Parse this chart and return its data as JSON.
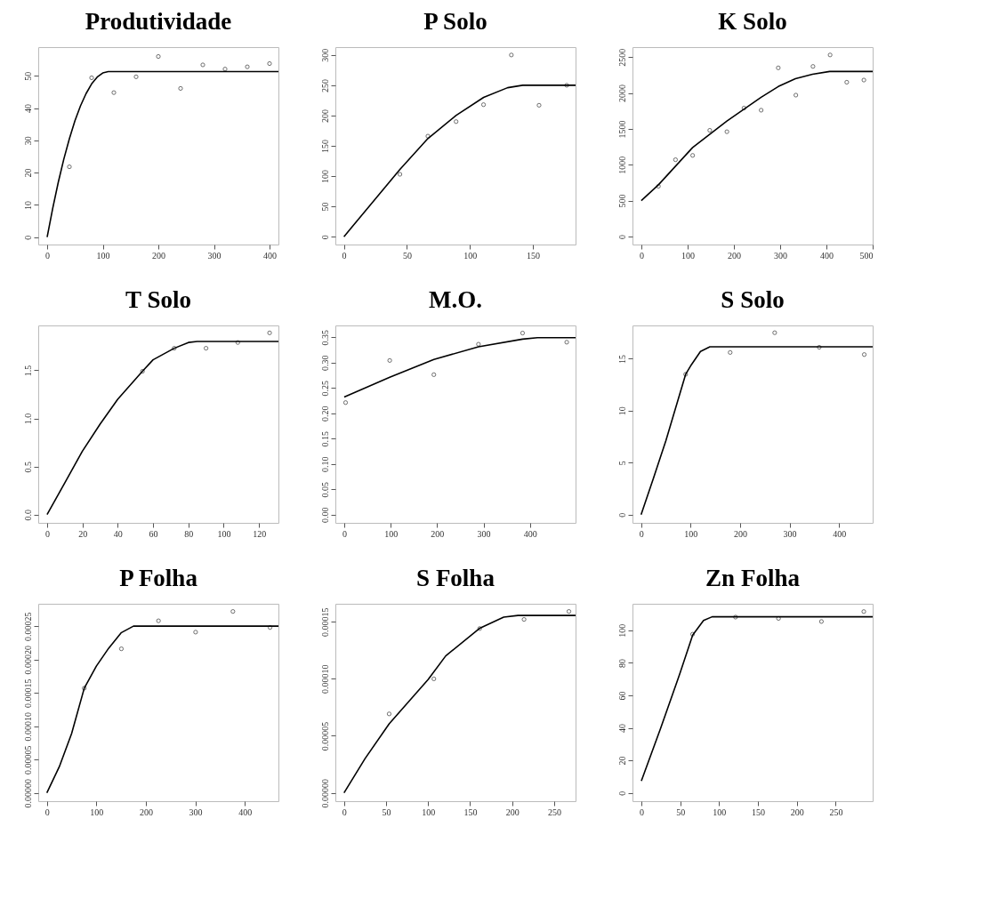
{
  "chart_data": [
    {
      "type": "scatter",
      "title": "Produtividade",
      "xlim": [
        -16,
        416
      ],
      "ylim": [
        -2.3,
        58.9
      ],
      "xticks": [
        0,
        100,
        200,
        300,
        400
      ],
      "yticks": [
        0,
        10,
        20,
        30,
        40,
        50
      ],
      "grid": false,
      "series": [
        {
          "marker": "circle",
          "color": "#000000",
          "x": [
            40,
            80,
            120,
            160,
            200,
            240,
            280,
            320,
            360,
            400
          ],
          "values": [
            21.8,
            49.4,
            44.8,
            49.7,
            56.0,
            46.1,
            53.4,
            52.1,
            52.8,
            53.8
          ]
        },
        {
          "type": "line",
          "line_style": "solid",
          "color": "#000000",
          "x": [
            0,
            10,
            20,
            30,
            40,
            50,
            60,
            70,
            80,
            90,
            100,
            110,
            416
          ],
          "values": [
            0,
            8.9,
            17.0,
            24.2,
            30.5,
            36.1,
            40.7,
            44.5,
            47.5,
            49.6,
            50.9,
            51.3,
            51.3
          ]
        }
      ]
    },
    {
      "type": "scatter",
      "title": "P Solo",
      "xlim": [
        -6.8,
        184
      ],
      "ylim": [
        -13,
        313
      ],
      "xticks": [
        0,
        50,
        100,
        150
      ],
      "yticks": [
        0,
        50,
        100,
        150,
        200,
        250,
        300
      ],
      "grid": false,
      "series": [
        {
          "marker": "circle",
          "color": "#000000",
          "x": [
            44.5,
            66.7,
            89.1,
            110.9,
            133,
            155,
            177
          ],
          "values": [
            103,
            166,
            190,
            218,
            300,
            217,
            250
          ]
        },
        {
          "type": "line",
          "line_style": "solid",
          "color": "#000000",
          "x": [
            0,
            22,
            44.5,
            66.7,
            89,
            111,
            130,
            142,
            184
          ],
          "values": [
            0,
            55,
            111,
            162,
            200,
            230,
            246,
            250,
            250
          ]
        }
      ]
    },
    {
      "type": "scatter",
      "title": "K Solo",
      "xlim": [
        -19,
        500
      ],
      "ylim": [
        -112,
        2639
      ],
      "xticks": [
        0,
        100,
        200,
        300,
        400,
        500
      ],
      "yticks": [
        0,
        500,
        1000,
        1500,
        2000,
        2500
      ],
      "grid": false,
      "series": [
        {
          "marker": "circle",
          "color": "#000000",
          "x": [
            37,
            74,
            111,
            148,
            185,
            222,
            259,
            296,
            334,
            371,
            408,
            444,
            481
          ],
          "values": [
            700,
            1070,
            1130,
            1480,
            1460,
            1790,
            1760,
            2350,
            1970,
            2370,
            2530,
            2150,
            2180
          ]
        },
        {
          "type": "line",
          "line_style": "solid",
          "color": "#000000",
          "x": [
            0,
            37,
            74,
            111,
            185,
            259,
            296,
            333,
            370,
            407,
            500
          ],
          "values": [
            500,
            720,
            980,
            1240,
            1610,
            1940,
            2090,
            2200,
            2260,
            2300,
            2300
          ]
        }
      ]
    },
    {
      "type": "scatter",
      "title": "T Solo",
      "xlim": [
        -5,
        131
      ],
      "ylim": [
        -0.086,
        1.967
      ],
      "xticks": [
        0,
        20,
        40,
        60,
        80,
        100,
        120
      ],
      "yticks": [
        {
          "value": 0,
          "label": "0.0"
        },
        0.5,
        {
          "value": 1,
          "label": "1.0"
        },
        1.5
      ],
      "grid": false,
      "series": [
        {
          "marker": "circle",
          "color": "#000000",
          "x": [
            54,
            72,
            90,
            108,
            126
          ],
          "values": [
            1.49,
            1.73,
            1.73,
            1.79,
            1.89
          ]
        },
        {
          "type": "line",
          "line_style": "solid",
          "color": "#000000",
          "x": [
            0,
            10,
            20,
            30,
            40,
            54,
            60,
            72,
            80,
            85,
            131
          ],
          "values": [
            0,
            0.33,
            0.66,
            0.94,
            1.2,
            1.49,
            1.61,
            1.73,
            1.79,
            1.8,
            1.8
          ]
        }
      ]
    },
    {
      "type": "scatter",
      "title": "M.O.",
      "xlim": [
        -19,
        498
      ],
      "ylim": [
        -0.016,
        0.373
      ],
      "xticks": [
        0,
        100,
        200,
        300,
        400
      ],
      "yticks": [
        {
          "value": 0,
          "label": "0.00"
        },
        0.05,
        {
          "value": 0.1,
          "label": "0.10"
        },
        0.15,
        {
          "value": 0.2,
          "label": "0.20"
        },
        0.25,
        {
          "value": 0.3,
          "label": "0.30"
        },
        0.35
      ],
      "grid": false,
      "series": [
        {
          "marker": "circle",
          "color": "#000000",
          "x": [
            3,
            98,
            193,
            289,
            384,
            479
          ],
          "values": [
            0.221,
            0.304,
            0.276,
            0.336,
            0.358,
            0.34
          ]
        },
        {
          "type": "line",
          "line_style": "solid",
          "color": "#000000",
          "x": [
            0,
            98,
            193,
            289,
            384,
            416,
            498
          ],
          "values": [
            0.232,
            0.271,
            0.306,
            0.331,
            0.346,
            0.349,
            0.349
          ]
        }
      ]
    },
    {
      "type": "scatter",
      "title": "S Solo",
      "xlim": [
        -17.4,
        468
      ],
      "ylim": [
        -0.8,
        18.2
      ],
      "xticks": [
        0,
        100,
        200,
        300,
        400
      ],
      "yticks": [
        0,
        5,
        10,
        15
      ],
      "grid": false,
      "series": [
        {
          "marker": "circle",
          "color": "#000000",
          "x": [
            90,
            180,
            270,
            360,
            451
          ],
          "values": [
            13.5,
            15.6,
            17.5,
            16.1,
            15.4
          ]
        },
        {
          "type": "line",
          "line_style": "solid",
          "color": "#000000",
          "x": [
            0,
            25,
            50,
            75,
            90,
            100,
            120,
            139,
            468
          ],
          "values": [
            0,
            3.5,
            7.1,
            11.1,
            13.5,
            14.3,
            15.7,
            16.15,
            16.15
          ]
        }
      ]
    },
    {
      "type": "scatter",
      "title": "P Folha",
      "xlim": [
        -17.4,
        468
      ],
      "ylim": [
        -1.24e-05,
        0.0002835
      ],
      "xticks": [
        0,
        100,
        200,
        300,
        400
      ],
      "yticks": [
        {
          "value": 0,
          "label": "0.00000"
        },
        {
          "value": 5e-05,
          "label": "0.00005"
        },
        {
          "value": 0.0001,
          "label": "0.00010"
        },
        0.00015,
        {
          "value": 0.0002,
          "label": "0.00020"
        },
        0.00025
      ],
      "grid": false,
      "series": [
        {
          "marker": "circle",
          "color": "#000000",
          "x": [
            75.6,
            150.6,
            225.6,
            300.6,
            376,
            451
          ],
          "values": [
            0.000157,
            0.000216,
            0.000258,
            0.000241,
            0.000272,
            0.000248
          ]
        },
        {
          "type": "line",
          "line_style": "solid",
          "color": "#000000",
          "x": [
            0,
            25,
            50,
            75.6,
            100,
            125,
            150,
            175,
            468
          ],
          "values": [
            0,
            3.9e-05,
            8.9e-05,
            0.000157,
            0.00019,
            0.000217,
            0.00024,
            0.00025,
            0.00025
          ]
        }
      ]
    },
    {
      "type": "scatter",
      "title": "S Folha",
      "xlim": [
        -10.3,
        275.5
      ],
      "ylim": [
        -7.3e-06,
        0.0001657
      ],
      "xticks": [
        0,
        50,
        100,
        150,
        200,
        250
      ],
      "yticks": [
        {
          "value": 0,
          "label": "0.00000"
        },
        {
          "value": 5e-05,
          "label": "0.00005"
        },
        {
          "value": 0.0001,
          "label": "0.00010"
        },
        0.00015
      ],
      "grid": false,
      "series": [
        {
          "marker": "circle",
          "color": "#000000",
          "x": [
            53.7,
            106.9,
            161.4,
            214.2,
            267.6
          ],
          "values": [
            6.92e-05,
            9.99e-05,
            0.000144,
            0.000152,
            0.000159
          ]
        },
        {
          "type": "line",
          "line_style": "solid",
          "color": "#000000",
          "x": [
            0,
            25,
            53.7,
            100,
            121,
            161,
            190,
            207,
            275.5
          ],
          "values": [
            0,
            3e-05,
            6.05e-05,
            9.92e-05,
            0.00012,
            0.000144,
            0.000154,
            0.0001555,
            0.0001555
          ]
        }
      ]
    },
    {
      "type": "scatter",
      "title": "Zn Folha",
      "xlim": [
        -11.4,
        297.5
      ],
      "ylim": [
        -5.1,
        116.3
      ],
      "xticks": [
        0,
        50,
        100,
        150,
        200,
        250
      ],
      "yticks": [
        0,
        20,
        40,
        60,
        80,
        100
      ],
      "grid": false,
      "series": [
        {
          "marker": "circle",
          "color": "#000000",
          "x": [
            65.9,
            121.1,
            176.4,
            231.6,
            286.1
          ],
          "values": [
            97.6,
            108.1,
            107.3,
            105.4,
            111.5
          ]
        },
        {
          "type": "line",
          "line_style": "solid",
          "color": "#000000",
          "x": [
            0,
            25,
            50,
            66,
            80,
            91,
            297.5
          ],
          "values": [
            7.3,
            40,
            74,
            97,
            106,
            108.3,
            108.3
          ]
        }
      ]
    }
  ]
}
